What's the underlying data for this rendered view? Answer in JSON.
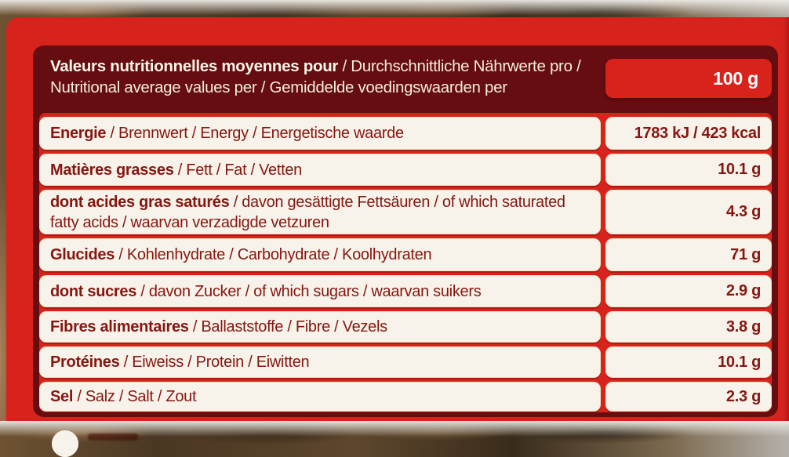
{
  "label": {
    "serving_size": "100 g",
    "header": {
      "bold": "Valeurs nutritionnelles moyennes pour",
      "rest": " / Durchschnittliche Nährwerte pro / Nutritional average values per / Gemiddelde voedingswaarden per"
    },
    "colors": {
      "bright_red": "#d8231d",
      "maroon_frame": "#650d11",
      "box_white": "#f7f3ea",
      "text_dark_red": "#871510",
      "header_cream": "#f3edda",
      "serving_text_white": "#ffffff"
    },
    "rows": [
      {
        "bold": "Energie",
        "rest": " / Brennwert / Energy / Energetische waarde",
        "value": "1783 kJ / 423 kcal"
      },
      {
        "bold": "Matières grasses",
        "rest": " / Fett / Fat / Vetten",
        "value": "10.1 g"
      },
      {
        "bold": "dont acides gras saturés",
        "rest": " / davon gesättigte Fettsäuren / of which saturated fatty acids / waarvan verzadigde vetzuren",
        "value": "4.3 g"
      },
      {
        "bold": "Glucides",
        "rest": " / Kohlenhydrate / Carbohydrate / Koolhydraten",
        "value": "71 g"
      },
      {
        "bold": "dont sucres",
        "rest": " / davon Zucker / of which sugars / waarvan suikers",
        "value": "2.9 g"
      },
      {
        "bold": "Fibres alimentaires",
        "rest": " / Ballaststoffe / Fibre / Vezels",
        "value": "3.8 g"
      },
      {
        "bold": "Protéines",
        "rest": " / Eiweiss / Protein / Eiwitten",
        "value": "10.1 g"
      },
      {
        "bold": "Sel",
        "rest": " / Salz / Salt / Zout",
        "value": "2.3 g"
      }
    ]
  }
}
